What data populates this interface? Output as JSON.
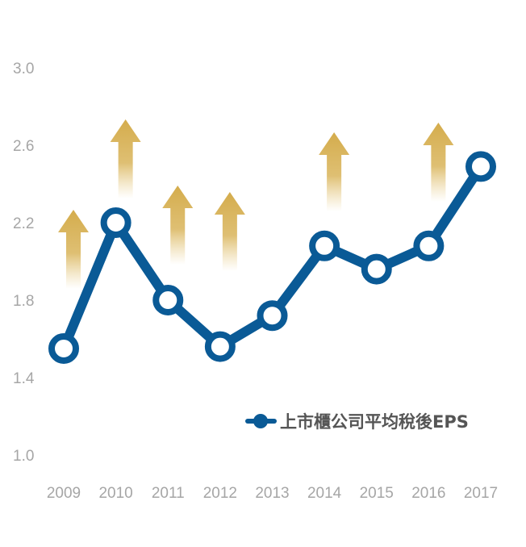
{
  "chart_data": {
    "type": "line",
    "x": [
      "2009",
      "2010",
      "2011",
      "2012",
      "2013",
      "2014",
      "2015",
      "2016",
      "2017"
    ],
    "series": [
      {
        "name": "上市櫃公司平均稅後EPS",
        "values": [
          1.55,
          2.2,
          1.8,
          1.56,
          1.72,
          2.08,
          1.96,
          2.08,
          2.49
        ],
        "color": "#0a5a96"
      }
    ],
    "yticks": [
      "1.0",
      "1.4",
      "1.8",
      "2.2",
      "2.6",
      "3.0"
    ],
    "ylim": [
      1.0,
      3.0
    ],
    "grid": false,
    "legend": "bottom-right",
    "legend_label": "上市櫃公司平均稅後EPS",
    "up_arrows": [
      "2009",
      "2010",
      "2011",
      "2012",
      "2014",
      "2016"
    ],
    "arrow_color": "#d4ac4c"
  }
}
